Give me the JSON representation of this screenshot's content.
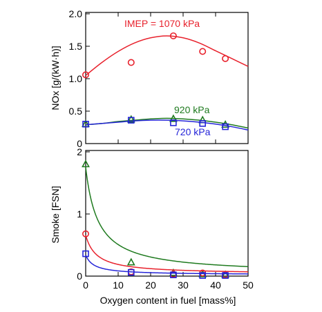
{
  "chart_data": [
    {
      "type": "scatter",
      "ylabel": "NOx [g/(kW·h)]",
      "xlim": [
        0,
        50
      ],
      "ylim": [
        0,
        2.0
      ],
      "yticks": [
        0,
        0.5,
        1.0,
        1.5,
        2.0
      ],
      "ytick_labels": [
        "0",
        "0.5",
        "1.0",
        "1.5",
        "2.0"
      ],
      "grid": false,
      "series": [
        {
          "name": "IMEP = 1070 kPa",
          "color": "#e8212c",
          "marker": "circle",
          "x": [
            0,
            14,
            27,
            36,
            43
          ],
          "values": [
            1.06,
            1.25,
            1.66,
            1.42,
            1.31
          ],
          "fit": [
            1.05,
            1.25,
            1.42,
            1.55,
            1.63,
            1.66,
            1.63,
            1.55,
            1.43,
            1.31,
            1.19
          ]
        },
        {
          "name": "920 kPa",
          "color": "#1e7a1e",
          "marker": "triangle",
          "x": [
            0,
            14,
            27,
            36,
            43
          ],
          "values": [
            0.3,
            0.37,
            0.38,
            0.36,
            0.29
          ],
          "fit": [
            0.29,
            0.31,
            0.34,
            0.36,
            0.38,
            0.39,
            0.38,
            0.36,
            0.33,
            0.29,
            0.24
          ]
        },
        {
          "name": "720 kPa",
          "color": "#2424d8",
          "marker": "square",
          "x": [
            0,
            14,
            27,
            36,
            43
          ],
          "values": [
            0.3,
            0.36,
            0.32,
            0.31,
            0.26
          ],
          "fit": [
            0.29,
            0.31,
            0.33,
            0.35,
            0.36,
            0.36,
            0.35,
            0.33,
            0.3,
            0.26,
            0.21
          ]
        }
      ]
    },
    {
      "type": "scatter",
      "ylabel": "Smoke [FSN]",
      "xlabel": "Oxygen content in fuel [mass%]",
      "xlim": [
        0,
        50
      ],
      "ylim": [
        0,
        2
      ],
      "xticks": [
        0,
        10,
        20,
        30,
        40,
        50
      ],
      "xtick_labels": [
        "0",
        "10",
        "20",
        "30",
        "40",
        "50"
      ],
      "yticks": [
        0,
        1,
        2
      ],
      "ytick_labels": [
        "0",
        "1",
        "2"
      ],
      "grid": false,
      "series": [
        {
          "color": "#1e7a1e",
          "marker": "triangle",
          "x": [
            0,
            14,
            27,
            36,
            43
          ],
          "values": [
            1.8,
            0.22,
            0.05,
            0.03,
            0.02
          ],
          "fit_model": {
            "a": 1.75,
            "k": 0.26,
            "c": 0.03
          }
        },
        {
          "color": "#e8212c",
          "marker": "circle",
          "x": [
            0,
            14,
            27,
            36,
            43
          ],
          "values": [
            0.68,
            0.07,
            0.03,
            0.05,
            0.02
          ],
          "fit_model": {
            "a": 0.66,
            "k": 0.3,
            "c": 0.03
          }
        },
        {
          "color": "#2424d8",
          "marker": "square",
          "x": [
            0,
            14,
            27,
            36,
            43
          ],
          "values": [
            0.36,
            0.06,
            0.02,
            0.01,
            0.01
          ],
          "fit_model": {
            "a": 0.34,
            "k": 0.4,
            "c": 0.02
          }
        }
      ]
    }
  ]
}
